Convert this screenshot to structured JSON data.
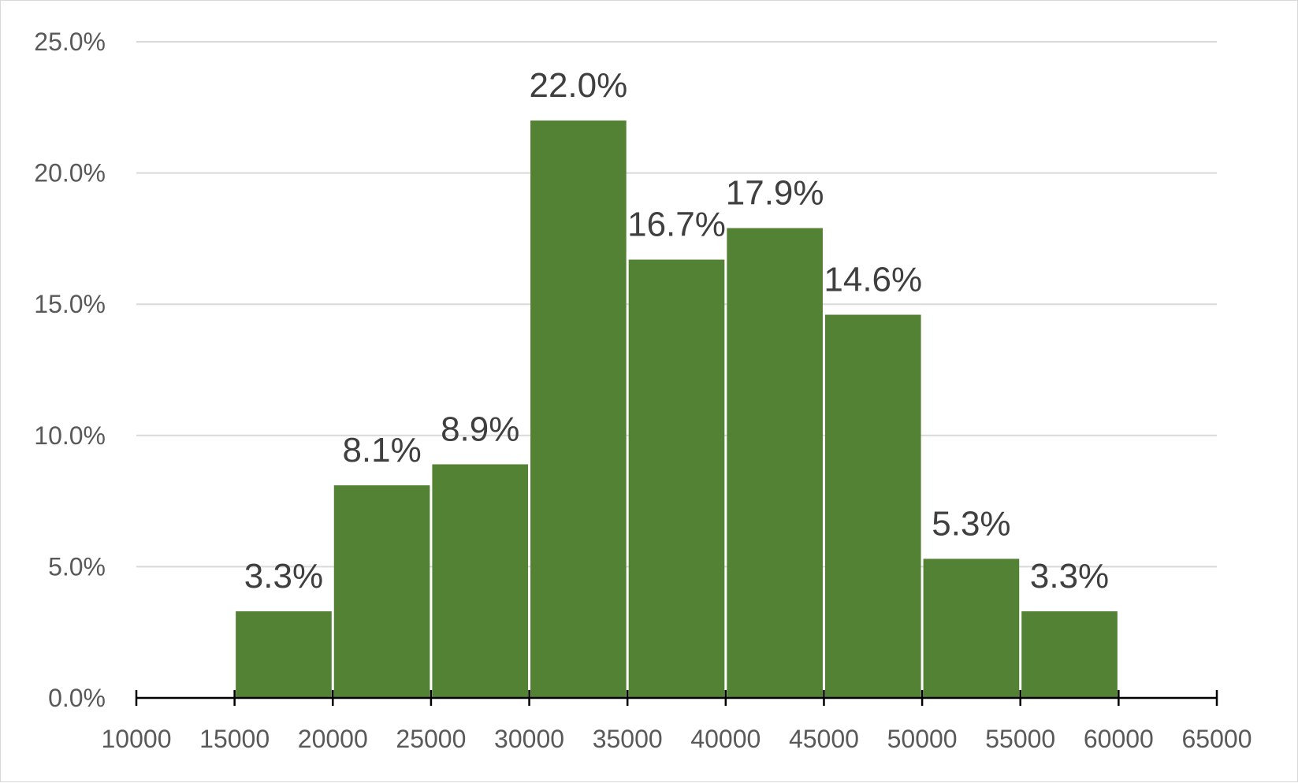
{
  "chart_data": {
    "type": "bar",
    "subtype": "histogram",
    "title": "",
    "xlabel": "",
    "ylabel": "",
    "bin_width": 5000,
    "xlim": [
      10000,
      65000
    ],
    "ylim": [
      0,
      25
    ],
    "grid": true,
    "legend": "none",
    "x_ticks": [
      "10000",
      "15000",
      "20000",
      "25000",
      "30000",
      "35000",
      "40000",
      "45000",
      "50000",
      "55000",
      "60000",
      "65000"
    ],
    "y_ticks": [
      "0.0%",
      "5.0%",
      "10.0%",
      "15.0%",
      "20.0%",
      "25.0%"
    ],
    "bins": [
      {
        "start": 15000,
        "end": 20000,
        "value": 3.3,
        "label": "3.3%"
      },
      {
        "start": 20000,
        "end": 25000,
        "value": 8.1,
        "label": "8.1%"
      },
      {
        "start": 25000,
        "end": 30000,
        "value": 8.9,
        "label": "8.9%"
      },
      {
        "start": 30000,
        "end": 35000,
        "value": 22.0,
        "label": "22.0%"
      },
      {
        "start": 35000,
        "end": 40000,
        "value": 16.7,
        "label": "16.7%"
      },
      {
        "start": 40000,
        "end": 45000,
        "value": 17.9,
        "label": "17.9%"
      },
      {
        "start": 45000,
        "end": 50000,
        "value": 14.6,
        "label": "14.6%"
      },
      {
        "start": 50000,
        "end": 55000,
        "value": 5.3,
        "label": "5.3%"
      },
      {
        "start": 55000,
        "end": 60000,
        "value": 3.3,
        "label": "3.3%"
      }
    ],
    "colors": {
      "bar": "#548235",
      "grid": "#d9d9d9",
      "axis": "#000000",
      "tick_text": "#595959",
      "label_text": "#3f3f3f"
    }
  }
}
